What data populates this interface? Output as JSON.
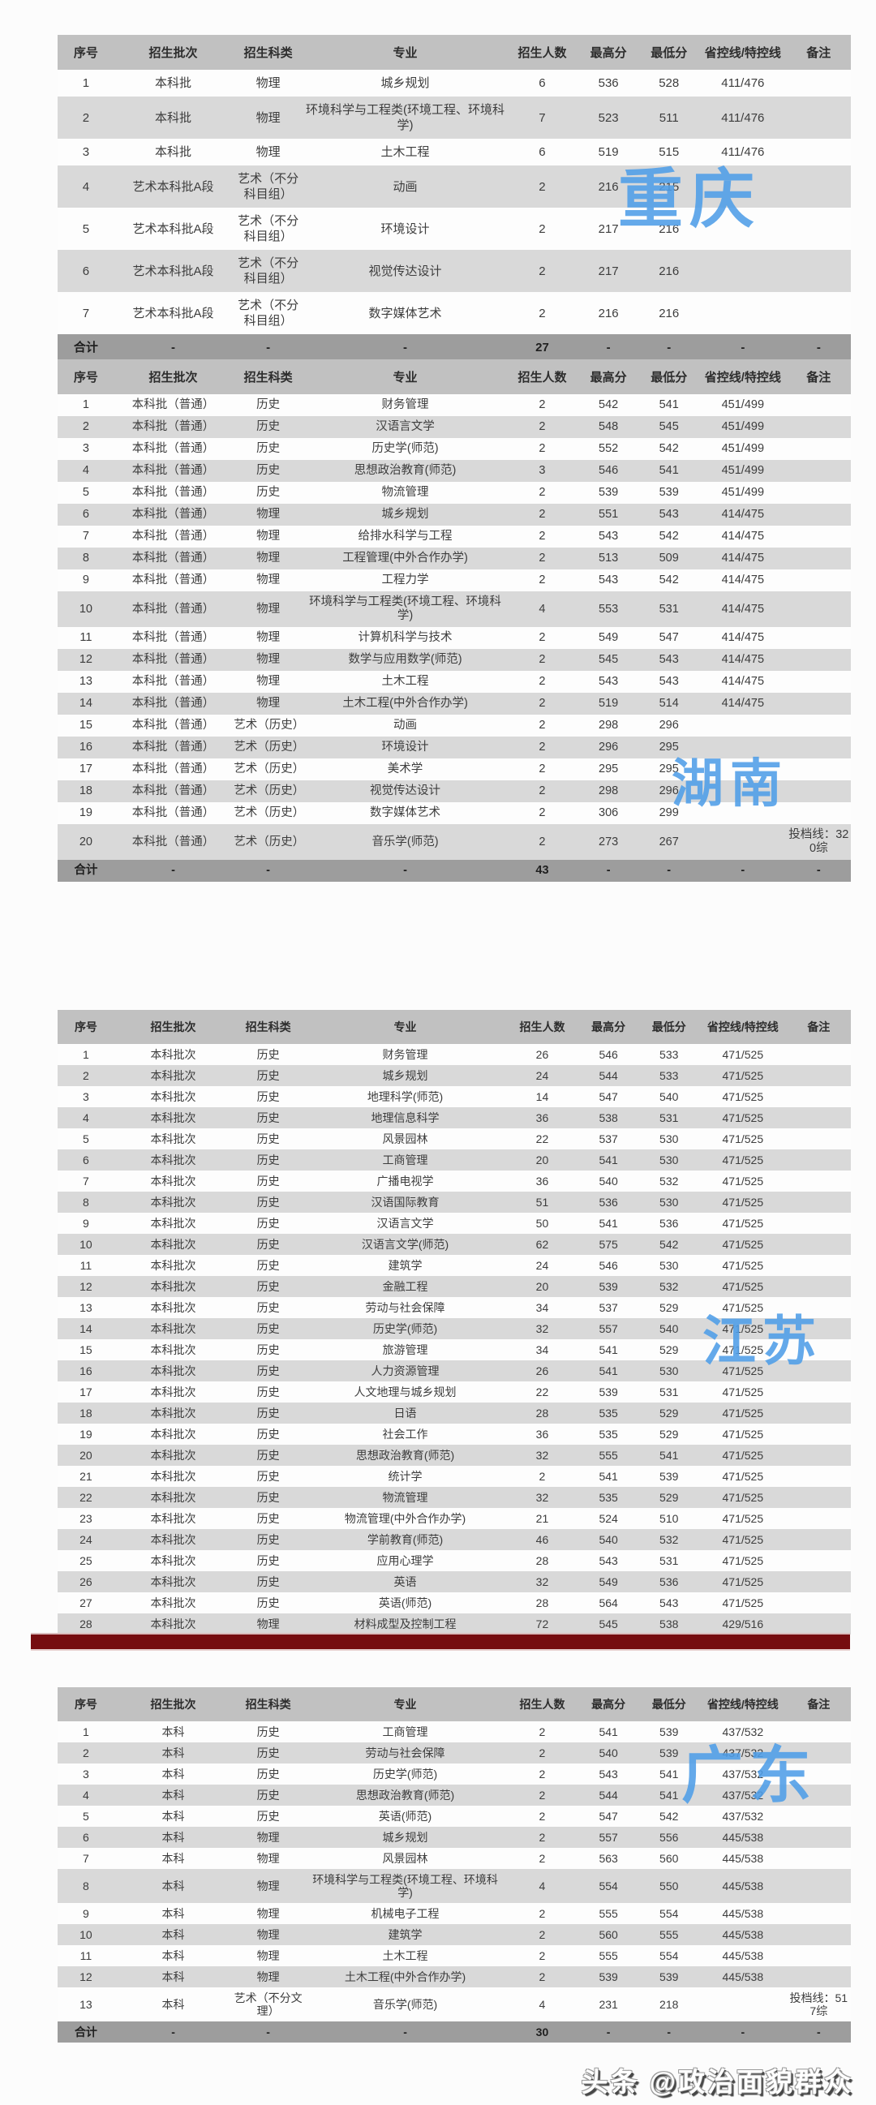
{
  "page": {
    "footer_watermark": "头条 @政治面貌群众",
    "watermark_color": "#4f9ee8",
    "divider_bar_color": "#760d10"
  },
  "table_headers": [
    "序号",
    "招生批次",
    "招生科类",
    "专业",
    "招生人数",
    "最高分",
    "最低分",
    "省控线/特控线",
    "备注"
  ],
  "tables": [
    {
      "watermark": "重庆",
      "rows": [
        [
          "1",
          "本科批",
          "物理",
          "城乡规划",
          "6",
          "536",
          "528",
          "411/476",
          ""
        ],
        [
          "2",
          "本科批",
          "物理",
          "环境科学与工程类(环境工程、环境科学)",
          "7",
          "523",
          "511",
          "411/476",
          ""
        ],
        [
          "3",
          "本科批",
          "物理",
          "土木工程",
          "6",
          "519",
          "515",
          "411/476",
          ""
        ],
        [
          "4",
          "艺术本科批A段",
          "艺术（不分科目组）",
          "动画",
          "2",
          "216",
          "215",
          "",
          ""
        ],
        [
          "5",
          "艺术本科批A段",
          "艺术（不分科目组）",
          "环境设计",
          "2",
          "217",
          "216",
          "",
          ""
        ],
        [
          "6",
          "艺术本科批A段",
          "艺术（不分科目组）",
          "视觉传达设计",
          "2",
          "217",
          "216",
          "",
          ""
        ],
        [
          "7",
          "艺术本科批A段",
          "艺术（不分科目组）",
          "数字媒体艺术",
          "2",
          "216",
          "216",
          "",
          ""
        ]
      ],
      "total": [
        "合计",
        "-",
        "-",
        "-",
        "27",
        "-",
        "-",
        "-",
        "-"
      ]
    },
    {
      "watermark": "湖南",
      "rows": [
        [
          "1",
          "本科批（普通）",
          "历史",
          "财务管理",
          "2",
          "542",
          "541",
          "451/499",
          ""
        ],
        [
          "2",
          "本科批（普通）",
          "历史",
          "汉语言文学",
          "2",
          "548",
          "545",
          "451/499",
          ""
        ],
        [
          "3",
          "本科批（普通）",
          "历史",
          "历史学(师范)",
          "2",
          "552",
          "542",
          "451/499",
          ""
        ],
        [
          "4",
          "本科批（普通）",
          "历史",
          "思想政治教育(师范)",
          "3",
          "546",
          "541",
          "451/499",
          ""
        ],
        [
          "5",
          "本科批（普通）",
          "历史",
          "物流管理",
          "2",
          "539",
          "539",
          "451/499",
          ""
        ],
        [
          "6",
          "本科批（普通）",
          "物理",
          "城乡规划",
          "2",
          "551",
          "543",
          "414/475",
          ""
        ],
        [
          "7",
          "本科批（普通）",
          "物理",
          "给排水科学与工程",
          "2",
          "543",
          "542",
          "414/475",
          ""
        ],
        [
          "8",
          "本科批（普通）",
          "物理",
          "工程管理(中外合作办学)",
          "2",
          "513",
          "509",
          "414/475",
          ""
        ],
        [
          "9",
          "本科批（普通）",
          "物理",
          "工程力学",
          "2",
          "543",
          "542",
          "414/475",
          ""
        ],
        [
          "10",
          "本科批（普通）",
          "物理",
          "环境科学与工程类(环境工程、环境科学)",
          "4",
          "553",
          "531",
          "414/475",
          ""
        ],
        [
          "11",
          "本科批（普通）",
          "物理",
          "计算机科学与技术",
          "2",
          "549",
          "547",
          "414/475",
          ""
        ],
        [
          "12",
          "本科批（普通）",
          "物理",
          "数学与应用数学(师范)",
          "2",
          "545",
          "543",
          "414/475",
          ""
        ],
        [
          "13",
          "本科批（普通）",
          "物理",
          "土木工程",
          "2",
          "543",
          "543",
          "414/475",
          ""
        ],
        [
          "14",
          "本科批（普通）",
          "物理",
          "土木工程(中外合作办学)",
          "2",
          "519",
          "514",
          "414/475",
          ""
        ],
        [
          "15",
          "本科批（普通）",
          "艺术（历史）",
          "动画",
          "2",
          "298",
          "296",
          "",
          ""
        ],
        [
          "16",
          "本科批（普通）",
          "艺术（历史）",
          "环境设计",
          "2",
          "296",
          "295",
          "",
          ""
        ],
        [
          "17",
          "本科批（普通）",
          "艺术（历史）",
          "美术学",
          "2",
          "295",
          "295",
          "",
          ""
        ],
        [
          "18",
          "本科批（普通）",
          "艺术（历史）",
          "视觉传达设计",
          "2",
          "298",
          "296",
          "",
          ""
        ],
        [
          "19",
          "本科批（普通）",
          "艺术（历史）",
          "数字媒体艺术",
          "2",
          "306",
          "299",
          "",
          ""
        ],
        [
          "20",
          "本科批（普通）",
          "艺术（历史）",
          "音乐学(师范)",
          "2",
          "273",
          "267",
          "",
          "投档线：320综"
        ]
      ],
      "total": [
        "合计",
        "-",
        "-",
        "-",
        "43",
        "-",
        "-",
        "-",
        "-"
      ]
    },
    {
      "watermark": "江苏",
      "rows": [
        [
          "1",
          "本科批次",
          "历史",
          "财务管理",
          "26",
          "546",
          "533",
          "471/525",
          ""
        ],
        [
          "2",
          "本科批次",
          "历史",
          "城乡规划",
          "24",
          "544",
          "533",
          "471/525",
          ""
        ],
        [
          "3",
          "本科批次",
          "历史",
          "地理科学(师范)",
          "14",
          "547",
          "540",
          "471/525",
          ""
        ],
        [
          "4",
          "本科批次",
          "历史",
          "地理信息科学",
          "36",
          "538",
          "531",
          "471/525",
          ""
        ],
        [
          "5",
          "本科批次",
          "历史",
          "风景园林",
          "22",
          "537",
          "530",
          "471/525",
          ""
        ],
        [
          "6",
          "本科批次",
          "历史",
          "工商管理",
          "20",
          "541",
          "530",
          "471/525",
          ""
        ],
        [
          "7",
          "本科批次",
          "历史",
          "广播电视学",
          "36",
          "540",
          "532",
          "471/525",
          ""
        ],
        [
          "8",
          "本科批次",
          "历史",
          "汉语国际教育",
          "51",
          "536",
          "530",
          "471/525",
          ""
        ],
        [
          "9",
          "本科批次",
          "历史",
          "汉语言文学",
          "50",
          "541",
          "536",
          "471/525",
          ""
        ],
        [
          "10",
          "本科批次",
          "历史",
          "汉语言文学(师范)",
          "62",
          "575",
          "542",
          "471/525",
          ""
        ],
        [
          "11",
          "本科批次",
          "历史",
          "建筑学",
          "24",
          "546",
          "530",
          "471/525",
          ""
        ],
        [
          "12",
          "本科批次",
          "历史",
          "金融工程",
          "20",
          "539",
          "532",
          "471/525",
          ""
        ],
        [
          "13",
          "本科批次",
          "历史",
          "劳动与社会保障",
          "34",
          "537",
          "529",
          "471/525",
          ""
        ],
        [
          "14",
          "本科批次",
          "历史",
          "历史学(师范)",
          "32",
          "557",
          "540",
          "471/525",
          ""
        ],
        [
          "15",
          "本科批次",
          "历史",
          "旅游管理",
          "34",
          "541",
          "529",
          "471/525",
          ""
        ],
        [
          "16",
          "本科批次",
          "历史",
          "人力资源管理",
          "26",
          "541",
          "530",
          "471/525",
          ""
        ],
        [
          "17",
          "本科批次",
          "历史",
          "人文地理与城乡规划",
          "22",
          "539",
          "531",
          "471/525",
          ""
        ],
        [
          "18",
          "本科批次",
          "历史",
          "日语",
          "28",
          "535",
          "529",
          "471/525",
          ""
        ],
        [
          "19",
          "本科批次",
          "历史",
          "社会工作",
          "36",
          "535",
          "529",
          "471/525",
          ""
        ],
        [
          "20",
          "本科批次",
          "历史",
          "思想政治教育(师范)",
          "32",
          "555",
          "541",
          "471/525",
          ""
        ],
        [
          "21",
          "本科批次",
          "历史",
          "统计学",
          "2",
          "541",
          "539",
          "471/525",
          ""
        ],
        [
          "22",
          "本科批次",
          "历史",
          "物流管理",
          "32",
          "535",
          "529",
          "471/525",
          ""
        ],
        [
          "23",
          "本科批次",
          "历史",
          "物流管理(中外合作办学)",
          "21",
          "524",
          "510",
          "471/525",
          ""
        ],
        [
          "24",
          "本科批次",
          "历史",
          "学前教育(师范)",
          "46",
          "540",
          "532",
          "471/525",
          ""
        ],
        [
          "25",
          "本科批次",
          "历史",
          "应用心理学",
          "28",
          "543",
          "531",
          "471/525",
          ""
        ],
        [
          "26",
          "本科批次",
          "历史",
          "英语",
          "32",
          "549",
          "536",
          "471/525",
          ""
        ],
        [
          "27",
          "本科批次",
          "历史",
          "英语(师范)",
          "28",
          "564",
          "543",
          "471/525",
          ""
        ],
        [
          "28",
          "本科批次",
          "物理",
          "材料成型及控制工程",
          "72",
          "545",
          "538",
          "429/516",
          ""
        ]
      ],
      "total": null
    },
    {
      "watermark": "广东",
      "rows": [
        [
          "1",
          "本科",
          "历史",
          "工商管理",
          "2",
          "541",
          "539",
          "437/532",
          ""
        ],
        [
          "2",
          "本科",
          "历史",
          "劳动与社会保障",
          "2",
          "540",
          "539",
          "437/532",
          ""
        ],
        [
          "3",
          "本科",
          "历史",
          "历史学(师范)",
          "2",
          "543",
          "541",
          "437/532",
          ""
        ],
        [
          "4",
          "本科",
          "历史",
          "思想政治教育(师范)",
          "2",
          "544",
          "541",
          "437/532",
          ""
        ],
        [
          "5",
          "本科",
          "历史",
          "英语(师范)",
          "2",
          "547",
          "542",
          "437/532",
          ""
        ],
        [
          "6",
          "本科",
          "物理",
          "城乡规划",
          "2",
          "557",
          "556",
          "445/538",
          ""
        ],
        [
          "7",
          "本科",
          "物理",
          "风景园林",
          "2",
          "563",
          "560",
          "445/538",
          ""
        ],
        [
          "8",
          "本科",
          "物理",
          "环境科学与工程类(环境工程、环境科学)",
          "4",
          "554",
          "550",
          "445/538",
          ""
        ],
        [
          "9",
          "本科",
          "物理",
          "机械电子工程",
          "2",
          "555",
          "554",
          "445/538",
          ""
        ],
        [
          "10",
          "本科",
          "物理",
          "建筑学",
          "2",
          "560",
          "555",
          "445/538",
          ""
        ],
        [
          "11",
          "本科",
          "物理",
          "土木工程",
          "2",
          "555",
          "554",
          "445/538",
          ""
        ],
        [
          "12",
          "本科",
          "物理",
          "土木工程(中外合作办学)",
          "2",
          "539",
          "539",
          "445/538",
          ""
        ],
        [
          "13",
          "本科",
          "艺术（不分文理）",
          "音乐学(师范)",
          "4",
          "231",
          "218",
          "",
          "投档线：517综"
        ]
      ],
      "total": [
        "合计",
        "-",
        "-",
        "-",
        "30",
        "-",
        "-",
        "-",
        "-"
      ]
    }
  ]
}
